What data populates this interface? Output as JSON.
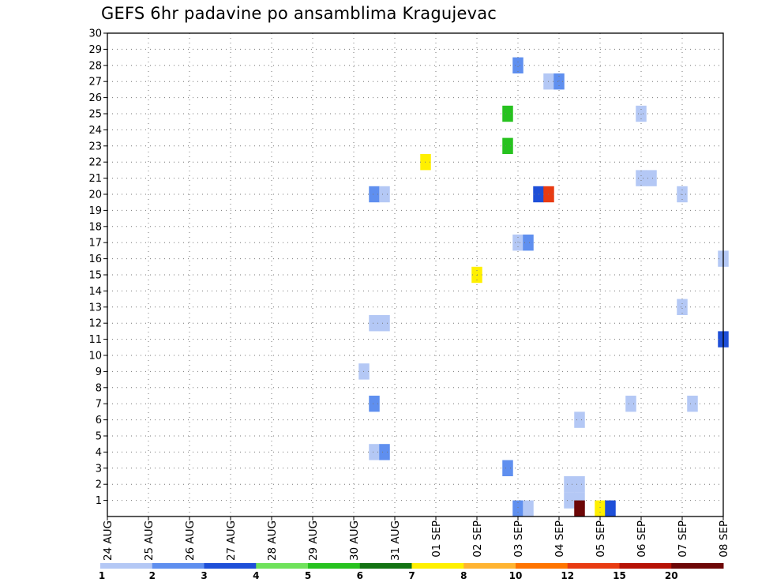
{
  "chart_data": {
    "type": "heatmap",
    "title": "GEFS 6hr padavine po ansamblima Kragujevac",
    "xlabel": "",
    "ylabel": "",
    "grid": true,
    "x_tick_labels": [
      "24 AUG",
      "25 AUG",
      "26 AUG",
      "27 AUG",
      "28 AUG",
      "29 AUG",
      "30 AUG",
      "31 AUG",
      "01 SEP",
      "02 SEP",
      "03 SEP",
      "04 SEP",
      "05 SEP",
      "06 SEP",
      "07 SEP",
      "08 SEP"
    ],
    "xlim": [
      0,
      15
    ],
    "ylim": [
      0,
      30
    ],
    "y_ticks": [
      1,
      2,
      3,
      4,
      5,
      6,
      7,
      8,
      9,
      10,
      11,
      12,
      13,
      14,
      15,
      16,
      17,
      18,
      19,
      20,
      21,
      22,
      23,
      24,
      25,
      26,
      27,
      28,
      29,
      30
    ],
    "legend_levels": [
      "1",
      "2",
      "3",
      "4",
      "5",
      "6",
      "7",
      "8",
      "10",
      "12",
      "15",
      "20"
    ],
    "colors": [
      "#b4c8f5",
      "#5f8fef",
      "#1e4fd8",
      "#6fe25b",
      "#27c21f",
      "#137313",
      "#fff000",
      "#ffb431",
      "#ff7400",
      "#e83b12",
      "#b61206",
      "#6d0707"
    ],
    "cells": [
      {
        "day": 10.0,
        "member": 28,
        "value": 2
      },
      {
        "day": 10.75,
        "member": 27,
        "value": 1
      },
      {
        "day": 11.0,
        "member": 27,
        "value": 2
      },
      {
        "day": 9.75,
        "member": 25,
        "value": 5
      },
      {
        "day": 9.75,
        "member": 23,
        "value": 5
      },
      {
        "day": 13.0,
        "member": 25,
        "value": 1
      },
      {
        "day": 7.75,
        "member": 22,
        "value": 7
      },
      {
        "day": 13.0,
        "member": 21,
        "value": 1
      },
      {
        "day": 13.25,
        "member": 21,
        "value": 1
      },
      {
        "day": 6.5,
        "member": 20,
        "value": 2
      },
      {
        "day": 6.75,
        "member": 20,
        "value": 1
      },
      {
        "day": 10.5,
        "member": 20,
        "value": 3
      },
      {
        "day": 10.75,
        "member": 20,
        "value": 10
      },
      {
        "day": 14.0,
        "member": 20,
        "value": 1
      },
      {
        "day": 10.0,
        "member": 17,
        "value": 1
      },
      {
        "day": 10.25,
        "member": 17,
        "value": 2
      },
      {
        "day": 15.0,
        "member": 16,
        "value": 1
      },
      {
        "day": 9.0,
        "member": 15,
        "value": 7
      },
      {
        "day": 14.0,
        "member": 13,
        "value": 1
      },
      {
        "day": 6.5,
        "member": 12,
        "value": 1
      },
      {
        "day": 6.75,
        "member": 12,
        "value": 1
      },
      {
        "day": 15.0,
        "member": 11,
        "value": 3
      },
      {
        "day": 6.25,
        "member": 9,
        "value": 1
      },
      {
        "day": 6.5,
        "member": 7,
        "value": 2
      },
      {
        "day": 12.75,
        "member": 7,
        "value": 1
      },
      {
        "day": 14.25,
        "member": 7,
        "value": 1
      },
      {
        "day": 11.5,
        "member": 6,
        "value": 1
      },
      {
        "day": 6.5,
        "member": 4,
        "value": 1
      },
      {
        "day": 6.75,
        "member": 4,
        "value": 2
      },
      {
        "day": 9.75,
        "member": 3,
        "value": 2
      },
      {
        "day": 11.25,
        "member": 2,
        "value": 1
      },
      {
        "day": 11.5,
        "member": 2,
        "value": 1
      },
      {
        "day": 11.25,
        "member": 1,
        "value": 1
      },
      {
        "day": 11.5,
        "member": 1,
        "value": 1
      },
      {
        "day": 11.5,
        "member": 0.5,
        "value": 15
      },
      {
        "day": 10.0,
        "member": 0.5,
        "value": 2
      },
      {
        "day": 10.25,
        "member": 0.5,
        "value": 1
      },
      {
        "day": 12.0,
        "member": 0.5,
        "value": 7
      },
      {
        "day": 12.25,
        "member": 0.5,
        "value": 3
      }
    ]
  }
}
